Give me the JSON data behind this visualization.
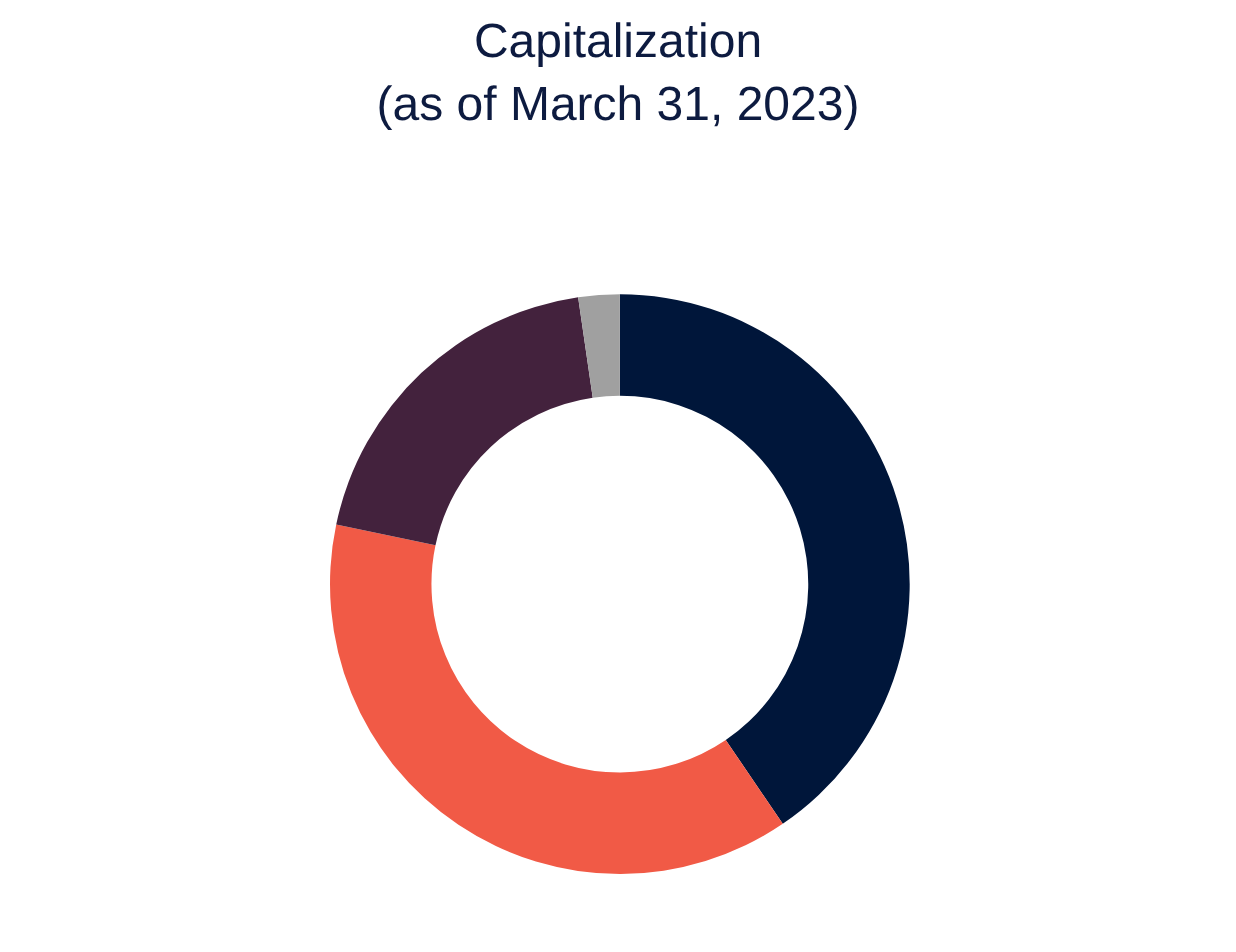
{
  "chart_data": {
    "type": "donut",
    "title": "Capitalization\n(as of March 31, 2023)",
    "categories": [
      null,
      null,
      null,
      null
    ],
    "values": [
      40.5,
      37.8,
      19.4,
      2.3
    ],
    "colors": [
      "#00163a",
      "#f15a46",
      "#43223d",
      "#a0a0a0"
    ]
  }
}
